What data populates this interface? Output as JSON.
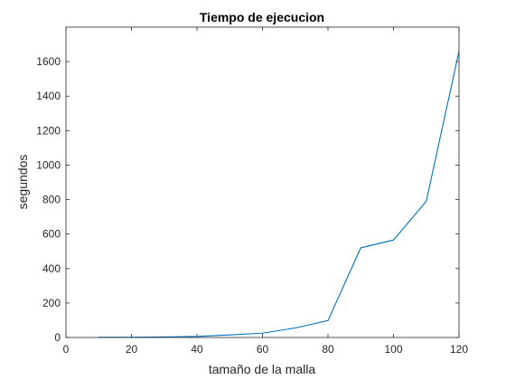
{
  "chart_data": {
    "type": "line",
    "title": "Tiempo de ejecucion",
    "xlabel": "tamaño de la malla",
    "ylabel": "segundos",
    "xlim": [
      0,
      120
    ],
    "ylim": [
      0,
      1800
    ],
    "xticks": [
      0,
      20,
      40,
      60,
      80,
      100,
      120
    ],
    "yticks": [
      0,
      200,
      400,
      600,
      800,
      1000,
      1200,
      1400,
      1600
    ],
    "grid": false,
    "series": [
      {
        "color": "#0072bd",
        "x": [
          10,
          20,
          30,
          40,
          50,
          60,
          70,
          80,
          90,
          100,
          110,
          120
        ],
        "y": [
          1,
          1,
          3,
          6,
          15,
          25,
          55,
          98,
          520,
          565,
          790,
          1660
        ]
      }
    ]
  }
}
